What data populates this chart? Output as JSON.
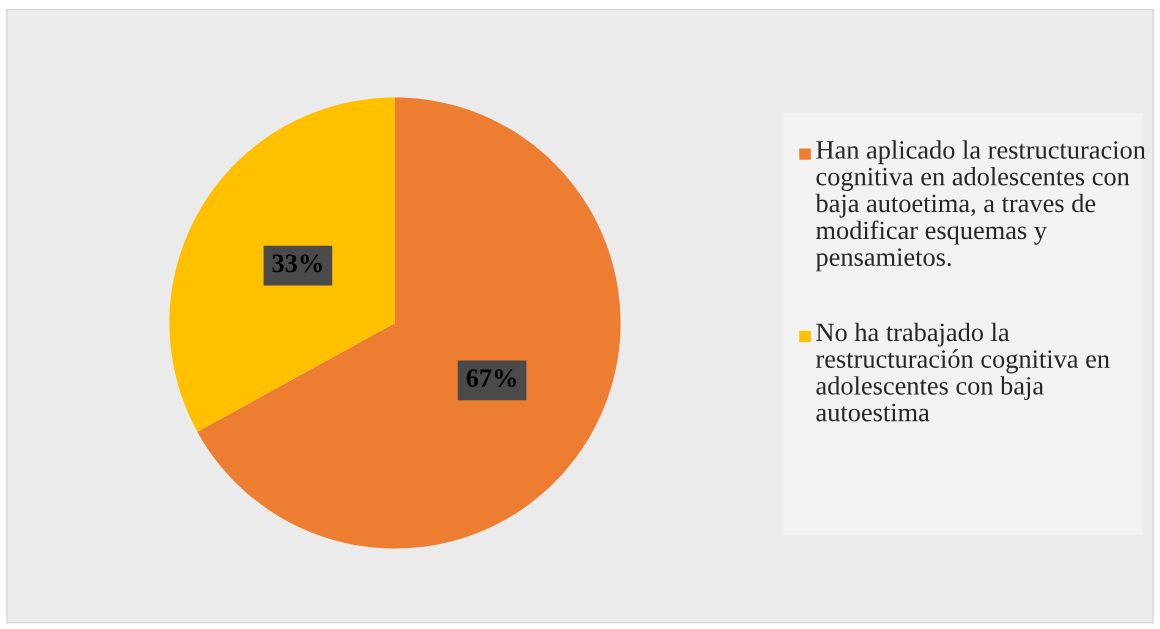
{
  "chart_data": {
    "type": "pie",
    "categories": [
      "Han aplicado la restructuracion cognitiva en adolescentes con baja autoetima, a traves de modificar esquemas y pensamietos.",
      "No ha trabajado la restructuración cognitiva en adolescentes con baja autoestima"
    ],
    "values": [
      67,
      33
    ],
    "colors": [
      "#ed7d31",
      "#ffc000"
    ],
    "value_labels": [
      "67%",
      "33%"
    ],
    "legend": "right"
  }
}
